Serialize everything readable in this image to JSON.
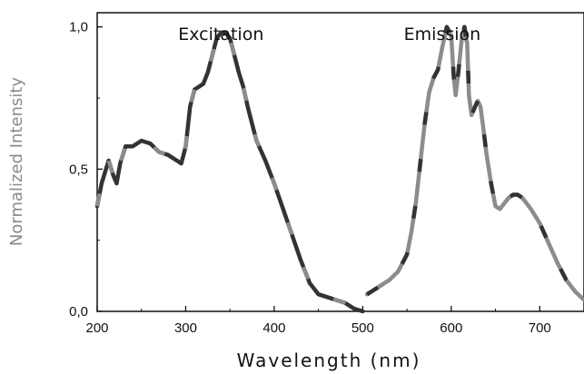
{
  "chart_data": {
    "type": "line",
    "xlabel": "Wavelength (nm)",
    "ylabel": "Normalized Intensity",
    "xlim": [
      200,
      750
    ],
    "ylim": [
      0,
      1.05
    ],
    "x_ticks": [
      200,
      300,
      400,
      500,
      600,
      700
    ],
    "x_tick_labels": [
      "200",
      "300",
      "400",
      "500",
      "600",
      "700"
    ],
    "y_ticks": [
      0,
      0.5,
      1.0
    ],
    "y_tick_labels": [
      "0,0",
      "0,5",
      "1,0"
    ],
    "grid": false,
    "annotations": [
      {
        "text": "Excitation",
        "x": 345
      },
      {
        "text": "Emission",
        "x": 595
      }
    ],
    "series": [
      {
        "color": "#333333",
        "accent": "#8c8c8c",
        "x": [
          200,
          205,
          210,
          213,
          218,
          222,
          226,
          232,
          240,
          250,
          260,
          270,
          280,
          290,
          295,
          300,
          305,
          310,
          315,
          320,
          325,
          330,
          335,
          340,
          345,
          350,
          355,
          360,
          365,
          370,
          375,
          380,
          390,
          400,
          410,
          420,
          430,
          440,
          450,
          460,
          470,
          480,
          490,
          500
        ],
        "y": [
          0.37,
          0.45,
          0.5,
          0.53,
          0.48,
          0.45,
          0.52,
          0.58,
          0.58,
          0.6,
          0.59,
          0.56,
          0.55,
          0.53,
          0.52,
          0.58,
          0.72,
          0.78,
          0.79,
          0.8,
          0.84,
          0.9,
          0.96,
          0.98,
          0.98,
          0.96,
          0.9,
          0.84,
          0.79,
          0.72,
          0.66,
          0.6,
          0.53,
          0.45,
          0.36,
          0.27,
          0.18,
          0.1,
          0.06,
          0.05,
          0.04,
          0.03,
          0.01,
          0.0
        ]
      },
      {
        "color": "#8c8c8c",
        "accent": "#333333",
        "x": [
          505,
          510,
          520,
          530,
          540,
          550,
          555,
          560,
          565,
          570,
          575,
          580,
          585,
          590,
          595,
          600,
          603,
          605,
          608,
          612,
          615,
          618,
          620,
          623,
          627,
          630,
          633,
          636,
          640,
          645,
          650,
          655,
          660,
          665,
          670,
          675,
          680,
          685,
          690,
          700,
          710,
          720,
          730,
          740,
          750
        ],
        "y": [
          0.06,
          0.07,
          0.09,
          0.11,
          0.14,
          0.2,
          0.28,
          0.38,
          0.52,
          0.66,
          0.77,
          0.82,
          0.85,
          0.93,
          1.0,
          0.97,
          0.82,
          0.76,
          0.84,
          0.96,
          1.0,
          0.94,
          0.76,
          0.69,
          0.72,
          0.74,
          0.72,
          0.65,
          0.55,
          0.45,
          0.37,
          0.36,
          0.38,
          0.4,
          0.41,
          0.41,
          0.4,
          0.38,
          0.36,
          0.31,
          0.24,
          0.17,
          0.11,
          0.07,
          0.04
        ]
      }
    ]
  }
}
